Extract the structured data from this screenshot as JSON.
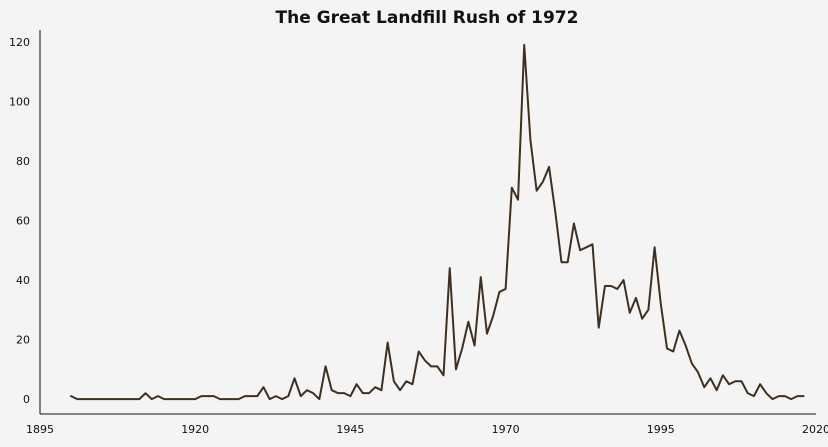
{
  "chart_data": {
    "type": "line",
    "title": "The Great Landfill Rush of 1972",
    "xlabel": "",
    "ylabel": "",
    "x_ticks": [
      1895,
      1920,
      1945,
      1970,
      1995,
      2020
    ],
    "y_ticks": [
      0,
      20,
      40,
      60,
      80,
      100,
      120
    ],
    "xlim": [
      1895,
      2020
    ],
    "ylim": [
      -5,
      124
    ],
    "grid": false,
    "legend": "none",
    "series": [
      {
        "color": "#3e3020",
        "x": [
          1900,
          1901,
          1902,
          1903,
          1904,
          1905,
          1906,
          1907,
          1908,
          1909,
          1910,
          1911,
          1912,
          1913,
          1914,
          1915,
          1916,
          1917,
          1918,
          1919,
          1920,
          1921,
          1922,
          1923,
          1924,
          1925,
          1926,
          1927,
          1928,
          1929,
          1930,
          1931,
          1932,
          1933,
          1934,
          1935,
          1936,
          1937,
          1938,
          1939,
          1940,
          1941,
          1942,
          1943,
          1944,
          1945,
          1946,
          1947,
          1948,
          1949,
          1950,
          1951,
          1952,
          1953,
          1954,
          1955,
          1956,
          1957,
          1958,
          1959,
          1960,
          1961,
          1962,
          1963,
          1964,
          1965,
          1966,
          1967,
          1968,
          1969,
          1970,
          1971,
          1972,
          1973,
          1974,
          1975,
          1976,
          1977,
          1978,
          1979,
          1980,
          1981,
          1982,
          1983,
          1984,
          1985,
          1986,
          1987,
          1988,
          1989,
          1990,
          1991,
          1992,
          1993,
          1994,
          1995,
          1996,
          1997,
          1998,
          1999,
          2000,
          2001,
          2002,
          2003,
          2004,
          2005,
          2006,
          2007,
          2008,
          2009,
          2010,
          2011,
          2012,
          2013,
          2014,
          2015,
          2016,
          2017,
          2018
        ],
        "y": [
          1,
          0,
          0,
          0,
          0,
          0,
          0,
          0,
          0,
          0,
          0,
          0,
          2,
          0,
          1,
          0,
          0,
          0,
          0,
          0,
          0,
          1,
          1,
          1,
          0,
          0,
          0,
          0,
          1,
          1,
          1,
          4,
          0,
          1,
          0,
          1,
          7,
          1,
          3,
          2,
          0,
          11,
          3,
          2,
          2,
          1,
          5,
          2,
          2,
          4,
          3,
          19,
          6,
          3,
          6,
          5,
          16,
          13,
          11,
          11,
          8,
          44,
          10,
          17,
          26,
          18,
          41,
          22,
          28,
          36,
          37,
          71,
          67,
          119,
          87,
          70,
          73,
          78,
          63,
          46,
          46,
          59,
          50,
          51,
          52,
          24,
          38,
          38,
          37,
          40,
          29,
          34,
          27,
          30,
          51,
          32,
          17,
          16,
          23,
          18,
          12,
          9,
          4,
          7,
          3,
          8,
          5,
          6,
          6,
          2,
          1,
          5,
          2,
          0,
          1,
          1,
          0,
          1,
          1
        ]
      }
    ]
  }
}
